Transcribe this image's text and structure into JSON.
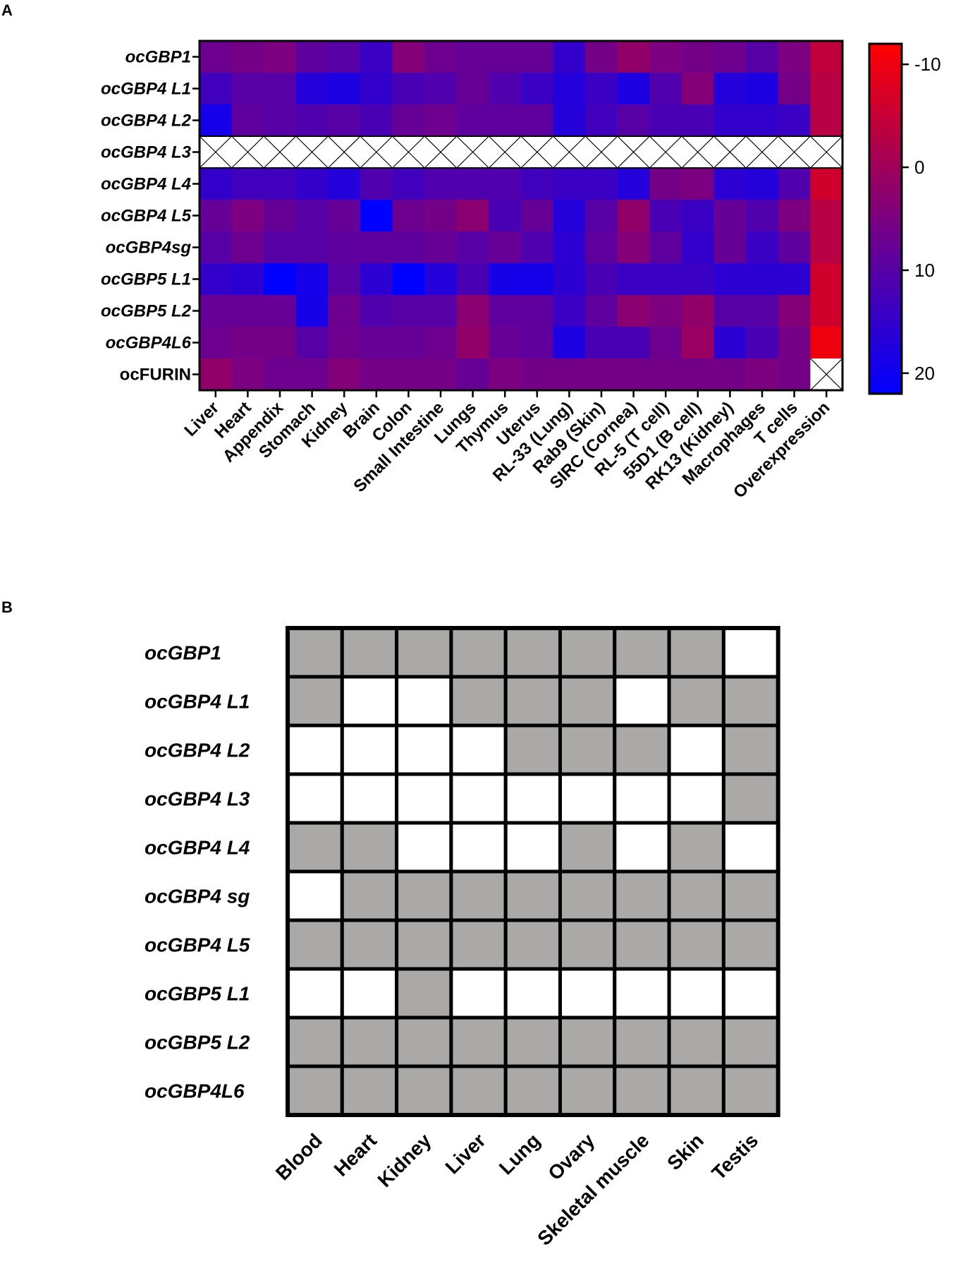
{
  "panels": {
    "a_label": "A",
    "b_label": "B"
  },
  "colors": {
    "high_neg": "#ff0000",
    "mid": "#a0005a",
    "low": "#0000ff",
    "present": "#aba9a8",
    "absent": "#ffffff"
  },
  "chart_data": [
    {
      "type": "heatmap",
      "panel": "A",
      "rows": [
        "ocGBP1",
        "ocGBP4 L1",
        "ocGBP4 L2",
        "ocGBP4 L3",
        "ocGBP4 L4",
        "ocGBP4 L5",
        "ocGBP4sg",
        "ocGBP5 L1",
        "ocGBP5 L2",
        "ocGBP4L6",
        "ocFURIN"
      ],
      "row_italic": [
        true,
        true,
        true,
        true,
        true,
        true,
        true,
        true,
        true,
        true,
        false
      ],
      "columns": [
        "Liver",
        "Heart",
        "Appendix",
        "Stomach",
        "Kidney",
        "Brain",
        "Colon",
        "Small Intestine",
        "Lungs",
        "Thymus",
        "Uterus",
        "RL-33 (Lung)",
        "Rab9 (Skin)",
        "SIRC (Cornea)",
        "RL-5 (T cell)",
        "55D1 (B cell)",
        "RK13 (Kidney)",
        "Macrophages",
        "T cells",
        "Overexpression"
      ],
      "values": [
        [
          7,
          6,
          5,
          9,
          10,
          14,
          4,
          7,
          8,
          8,
          8,
          15,
          6,
          2,
          5,
          6,
          7,
          10,
          5,
          -4
        ],
        [
          13,
          10,
          10,
          17,
          18,
          15,
          12,
          11,
          8,
          11,
          14,
          17,
          14,
          18,
          11,
          4,
          17,
          18,
          6,
          -3
        ],
        [
          19,
          9,
          10,
          11,
          10,
          12,
          8,
          7,
          9,
          9,
          9,
          17,
          13,
          10,
          12,
          12,
          15,
          15,
          14,
          -3
        ],
        [
          null,
          null,
          null,
          null,
          null,
          null,
          null,
          null,
          null,
          null,
          null,
          null,
          null,
          null,
          null,
          null,
          null,
          null,
          null,
          null
        ],
        [
          15,
          13,
          13,
          15,
          17,
          11,
          13,
          11,
          11,
          11,
          13,
          14,
          14,
          17,
          6,
          5,
          16,
          17,
          11,
          -6
        ],
        [
          8,
          5,
          8,
          10,
          8,
          23,
          7,
          6,
          3,
          12,
          8,
          17,
          10,
          2,
          12,
          14,
          8,
          11,
          5,
          -3
        ],
        [
          10,
          7,
          10,
          10,
          9,
          9,
          9,
          8,
          10,
          8,
          11,
          16,
          9,
          4,
          9,
          15,
          8,
          14,
          9,
          -3
        ],
        [
          15,
          16,
          22,
          19,
          10,
          16,
          22,
          17,
          12,
          19,
          19,
          16,
          12,
          14,
          14,
          14,
          16,
          16,
          16,
          -6
        ],
        [
          8,
          8,
          8,
          19,
          7,
          11,
          10,
          10,
          3,
          9,
          9,
          14,
          9,
          3,
          5,
          2,
          10,
          10,
          4,
          -6
        ],
        [
          7,
          6,
          6,
          10,
          7,
          8,
          8,
          7,
          2,
          8,
          9,
          18,
          12,
          12,
          7,
          1,
          16,
          12,
          6,
          -10
        ],
        [
          2,
          5,
          7,
          7,
          4,
          6,
          6,
          6,
          8,
          5,
          6,
          6,
          6,
          6,
          6,
          6,
          6,
          5,
          6,
          null
        ]
      ],
      "colorbar": {
        "ticks": [
          -10,
          0,
          10,
          20
        ],
        "range": [
          -12,
          22
        ],
        "reversed": true
      }
    },
    {
      "type": "heatmap",
      "panel": "B",
      "rows": [
        "ocGBP1",
        "ocGBP4 L1",
        "ocGBP4 L2",
        "ocGBP4 L3",
        "ocGBP4 L4",
        "ocGBP4 sg",
        "ocGBP4 L5",
        "ocGBP5 L1",
        "ocGBP5 L2",
        "ocGBP4L6"
      ],
      "columns": [
        "Blood",
        "Heart",
        "Kidney",
        "Liver",
        "Lung",
        "Ovary",
        "Skeletal muscle",
        "Skin",
        "Testis"
      ],
      "values": [
        [
          1,
          1,
          1,
          1,
          1,
          1,
          1,
          1,
          0
        ],
        [
          1,
          0,
          0,
          1,
          1,
          1,
          0,
          1,
          1
        ],
        [
          0,
          0,
          0,
          0,
          1,
          1,
          1,
          0,
          1
        ],
        [
          0,
          0,
          0,
          0,
          0,
          0,
          0,
          0,
          1
        ],
        [
          1,
          1,
          0,
          0,
          0,
          1,
          0,
          1,
          0
        ],
        [
          0,
          1,
          1,
          1,
          1,
          1,
          1,
          1,
          1
        ],
        [
          1,
          1,
          1,
          1,
          1,
          1,
          1,
          1,
          1
        ],
        [
          0,
          0,
          1,
          0,
          0,
          0,
          0,
          0,
          0
        ],
        [
          1,
          1,
          1,
          1,
          1,
          1,
          1,
          1,
          1
        ],
        [
          1,
          1,
          1,
          1,
          1,
          1,
          1,
          1,
          1
        ]
      ]
    }
  ]
}
